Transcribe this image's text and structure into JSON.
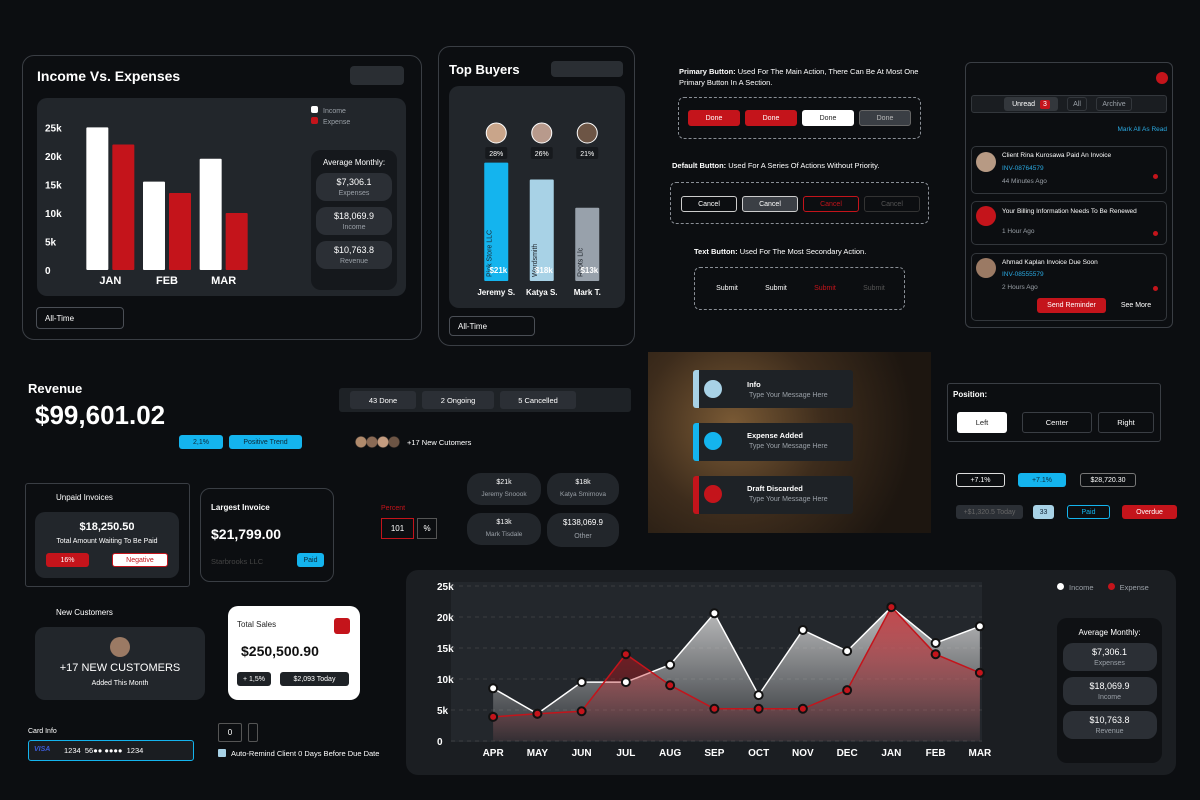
{
  "chart_data": [
    {
      "type": "bar",
      "title": "Income Vs. Expenses",
      "categories": [
        "JAN",
        "FEB",
        "MAR"
      ],
      "series": [
        {
          "name": "Income",
          "color": "#ffffff",
          "values": [
            25000,
            15500,
            19500
          ]
        },
        {
          "name": "Expense",
          "color": "#c4141b",
          "values": [
            22000,
            13500,
            10000
          ]
        }
      ],
      "ylim": [
        0,
        27000
      ],
      "yticks": [
        0,
        {
          "value": 5000,
          "label": "5k"
        },
        {
          "value": 10000,
          "label": "10k"
        },
        {
          "value": 15000,
          "label": "15k"
        },
        {
          "value": 20000,
          "label": "20k"
        },
        {
          "value": 25000,
          "label": "25k"
        }
      ],
      "grid": false,
      "legend": "upper-right",
      "filter": "All-Time",
      "average": {
        "title": "Average Monthly:",
        "items": [
          {
            "amount": "$7,306.1",
            "label": "Expenses"
          },
          {
            "amount": "$18,069.9",
            "label": "Income"
          },
          {
            "amount": "$10,763.8",
            "label": "Revenue"
          }
        ]
      }
    },
    {
      "type": "bar",
      "title": "Top Buyers",
      "categories": [
        "Jeremy S.",
        "Katya S.",
        "Mark T."
      ],
      "companies": [
        "Pink Store LLC",
        "Wordsmith",
        "Roots Llc"
      ],
      "shares": [
        "28%",
        "26%",
        "21%"
      ],
      "values": [
        21,
        18,
        13
      ],
      "value_labels": [
        "$21k",
        "$18k",
        "$13k"
      ],
      "colors": [
        "#14b4ee",
        "#a8d2e6",
        "#98a1ab"
      ],
      "ylim": [
        0,
        22
      ],
      "filter": "All-Time"
    },
    {
      "type": "area",
      "categories": [
        "APR",
        "MAY",
        "JUN",
        "JUL",
        "AUG",
        "SEP",
        "OCT",
        "NOV",
        "DEC",
        "JAN",
        "FEB",
        "MAR"
      ],
      "series": [
        {
          "name": "Income",
          "color": "#ffffff",
          "values": [
            8500,
            4400,
            9500,
            9500,
            12300,
            20600,
            7400,
            17900,
            14500,
            21600,
            15800,
            18500
          ]
        },
        {
          "name": "Expense",
          "color": "#c4141b",
          "values": [
            3900,
            4400,
            4800,
            14000,
            9000,
            5200,
            5200,
            5200,
            8200,
            21600,
            14000,
            11000
          ]
        }
      ],
      "ylim": [
        0,
        25000
      ],
      "yticks": [
        0,
        {
          "value": 5000,
          "label": "5k"
        },
        {
          "value": 10000,
          "label": "10k"
        },
        {
          "value": 15000,
          "label": "15k"
        },
        {
          "value": 20000,
          "label": "20k"
        },
        {
          "value": 25000,
          "label": "25k"
        }
      ],
      "grid": true,
      "legend": "upper-right",
      "average": {
        "title": "Average Monthly:",
        "items": [
          {
            "amount": "$7,306.1",
            "label": "Expenses"
          },
          {
            "amount": "$18,069.9",
            "label": "Income"
          },
          {
            "amount": "$10,763.8",
            "label": "Revenue"
          }
        ]
      }
    }
  ],
  "buttons": {
    "primary": {
      "label": "Primary Button:",
      "description": "Used For The Main Action, There Can Be At Most One Primary Button In A Section.",
      "items": [
        "Done",
        "Done",
        "Done",
        "Done"
      ]
    },
    "default": {
      "label": "Default Button:",
      "description": "Used For A Series Of Actions Without Priority.",
      "items": [
        "Cancel",
        "Cancel",
        "Cancel",
        "Cancel"
      ]
    },
    "text": {
      "label": "Text Button:",
      "description": "Used For The Most Secondary Action.",
      "items": [
        "Submit",
        "Submit",
        "Submit",
        "Submit"
      ]
    }
  },
  "notifications": {
    "tabs": [
      "Unread",
      "All",
      "Archive"
    ],
    "unread_count": 3,
    "mark_all": "Mark All As Read",
    "items": [
      {
        "title": "Client Rina Kurosawa Paid An Invoice",
        "invoice": "INV-08764579",
        "time": "44 Minutes Ago"
      },
      {
        "title": "Your Billing Information Needs To Be Renewed",
        "time": "1 Hour Ago"
      },
      {
        "title": "Ahmad Kaplan Invoice Due Soon",
        "invoice": "INV-08555579",
        "time": "2 Hours Ago",
        "action": "Send Reminder",
        "secondary": "See More"
      }
    ]
  },
  "revenue": {
    "title": "Revenue",
    "amount": "$99,601.02",
    "change": "2,1%",
    "trend": "Positive Trend"
  },
  "status": [
    "43 Done",
    "2 Ongoing",
    "5 Cancelled"
  ],
  "customers_badge": "+17 New Cutomers",
  "toasts": [
    {
      "title": "Info",
      "message": "Type Your Message Here"
    },
    {
      "title": "Expense Added",
      "message": "Type Your Message Here"
    },
    {
      "title": "Draft Discarded",
      "message": "Type Your Message Here"
    }
  ],
  "position": {
    "label": "Position:",
    "options": [
      "Left",
      "Center",
      "Right"
    ]
  },
  "chips": [
    "+7.1%",
    "+7.1%",
    "$28,720.30",
    "+$1,320.5 Today",
    "33",
    "Paid",
    "Overdue"
  ],
  "unpaid_invoices": {
    "title": "Unpaid Invoices",
    "amount": "$18,250.50",
    "caption": "Total Amount Waiting To Be Paid",
    "change": "16%",
    "trend": "Negative"
  },
  "largest_invoice": {
    "title": "Largest Invoice",
    "amount": "$21,799.00",
    "client": "Starbrooks LLC",
    "status": "Paid"
  },
  "percent_input": {
    "label": "Percent",
    "value": 101,
    "unit": "%"
  },
  "buyer_cards": [
    {
      "amount": "$21k",
      "name": "Jeremy Snoook"
    },
    {
      "amount": "$18k",
      "name": "Katya Smirnova"
    },
    {
      "amount": "$13k",
      "name": "Mark Tisdale"
    },
    {
      "amount": "$138,069.9",
      "name": "Other"
    }
  ],
  "new_customers": {
    "title": "New Customers",
    "headline": "+17 NEW CUSTOMERS",
    "caption": "Added This Month"
  },
  "total_sales": {
    "title": "Total Sales",
    "amount": "$250,500.90",
    "change": "+ 1,5%",
    "today": "$2,093 Today"
  },
  "card_info": {
    "label": "Card Info",
    "brand": "VISA",
    "number": "1234  56●● ●●●●  1234"
  },
  "counter": 0,
  "auto_remind": {
    "before": "Auto-Remind Client",
    "days": 0,
    "after": "Days Before Due Date"
  }
}
